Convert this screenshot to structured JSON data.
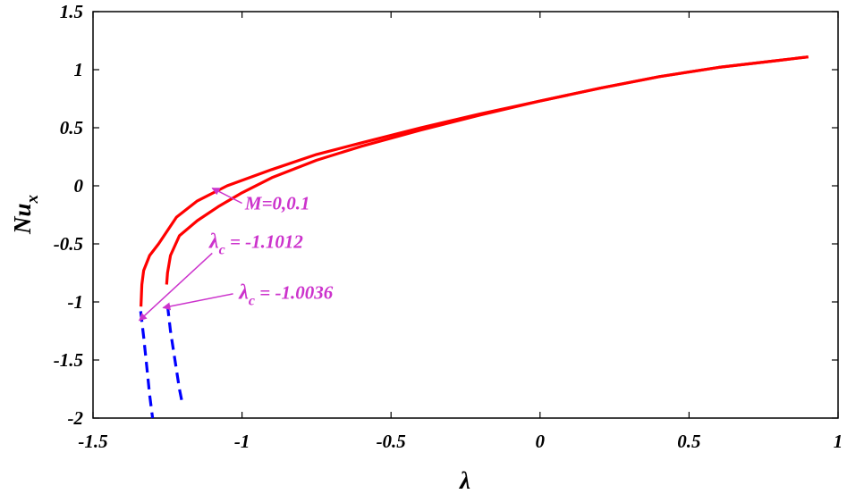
{
  "chart_data": {
    "type": "line",
    "title": "",
    "xlabel": "λ",
    "ylabel_main": "Nu",
    "ylabel_sub": "x",
    "xlim": [
      -1.5,
      1
    ],
    "ylim": [
      -2,
      1.5
    ],
    "xticks": [
      -1.5,
      -1,
      -0.5,
      0,
      0.5,
      1
    ],
    "yticks": [
      -2,
      -1.5,
      -1,
      -0.5,
      0,
      0.5,
      1,
      1.5
    ],
    "xtick_labels": [
      "-1.5",
      "-1",
      "-0.5",
      "0",
      "0.5",
      "1"
    ],
    "ytick_labels": [
      "-2",
      "-1.5",
      "-1",
      "-0.5",
      "0",
      "0.5",
      "1",
      "1.5"
    ],
    "grid": false,
    "colors": {
      "first": "#ff0000",
      "second": "#0000ff",
      "annotation": "#cc33cc"
    },
    "series": [
      {
        "branch": "first",
        "line_style": "solid",
        "x": [
          -1.339,
          -1.336,
          -1.33,
          -1.31,
          -1.28,
          -1.22,
          -1.15,
          -1.05,
          -0.9,
          -0.75,
          -0.6,
          -0.4,
          -0.2,
          0,
          0.2,
          0.4,
          0.6,
          0.8,
          0.9
        ],
        "y": [
          -1.04,
          -0.85,
          -0.73,
          -0.6,
          -0.5,
          -0.27,
          -0.13,
          0.0,
          0.14,
          0.27,
          0.37,
          0.5,
          0.62,
          0.73,
          0.84,
          0.94,
          1.02,
          1.08,
          1.11
        ]
      },
      {
        "branch": "first",
        "line_style": "solid",
        "x": [
          -1.253,
          -1.25,
          -1.24,
          -1.21,
          -1.15,
          -1.08,
          -1.0,
          -0.9,
          -0.75,
          -0.6,
          -0.4,
          -0.2,
          0,
          0.2,
          0.4,
          0.6,
          0.8,
          0.9
        ],
        "y": [
          -0.85,
          -0.75,
          -0.6,
          -0.43,
          -0.3,
          -0.18,
          -0.06,
          0.07,
          0.22,
          0.34,
          0.48,
          0.61,
          0.73,
          0.84,
          0.94,
          1.02,
          1.08,
          1.11
        ]
      },
      {
        "branch": "second",
        "line_style": "dashed",
        "x": [
          -1.34,
          -1.33,
          -1.32,
          -1.31,
          -1.3
        ],
        "y": [
          -1.08,
          -1.3,
          -1.55,
          -1.8,
          -2.0
        ]
      },
      {
        "branch": "second",
        "line_style": "dashed",
        "x": [
          -1.25,
          -1.24,
          -1.225,
          -1.21,
          -1.2
        ],
        "y": [
          -1.03,
          -1.25,
          -1.5,
          -1.75,
          -1.88
        ]
      }
    ],
    "annotations": [
      {
        "label": "M=0,0.1",
        "text_at": [
          -0.99,
          -0.15
        ],
        "arrow_from": [
          -1.0,
          -0.15
        ],
        "arrow_to": [
          -1.1,
          -0.02
        ]
      },
      {
        "label_main": "λ",
        "label_sub": "c",
        "label_value": " = -1.1012",
        "text_at": [
          -1.11,
          -0.48
        ],
        "arrow_from": [
          -1.1,
          -0.58
        ],
        "arrow_to": [
          -1.345,
          -1.16
        ]
      },
      {
        "label_main": "λ",
        "label_sub": "c",
        "label_value": " = -1.0036",
        "text_at": [
          -1.01,
          -0.92
        ],
        "arrow_from": [
          -1.03,
          -0.93
        ],
        "arrow_to": [
          -1.265,
          -1.05
        ]
      }
    ]
  }
}
